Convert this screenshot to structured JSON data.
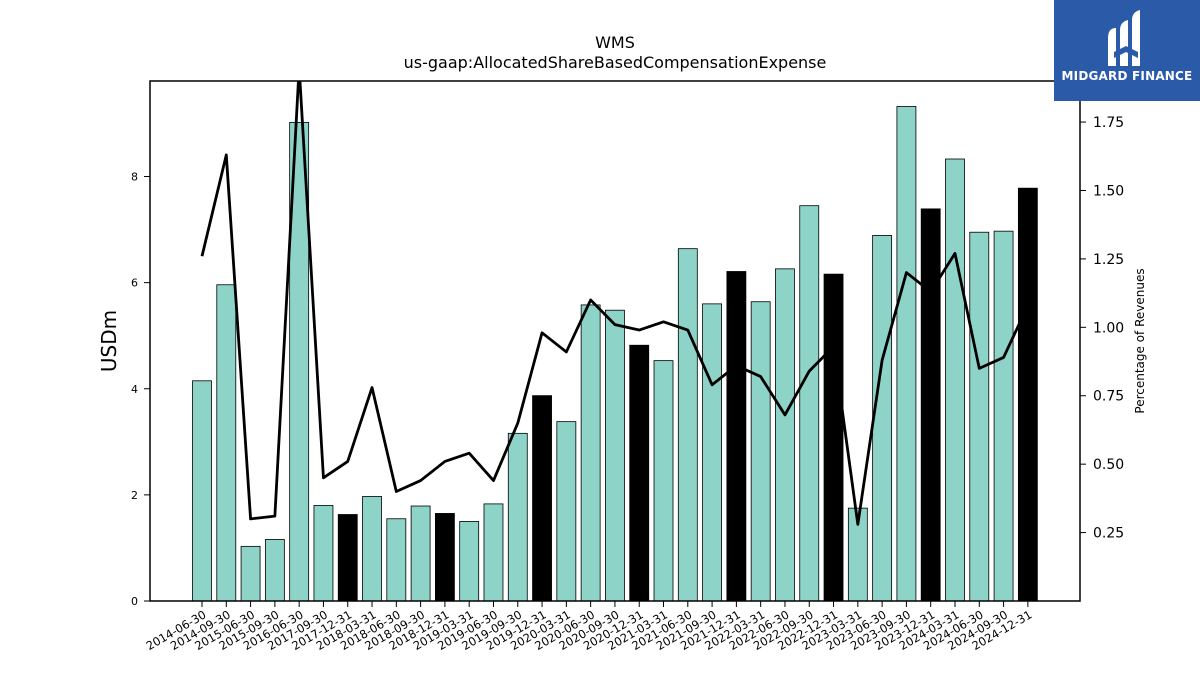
{
  "chart_data": {
    "type": "bar",
    "title": "WMS",
    "subtitle": "us-gaap:AllocatedShareBasedCompensationExpense",
    "ylabel": "USDm",
    "y2label": "Percentage of Revenues",
    "ylim": [
      0,
      9.8
    ],
    "y2lim": [
      0,
      1.9
    ],
    "yticks": [
      "0",
      "2",
      "4",
      "6",
      "8"
    ],
    "y2ticks": [
      "0.25",
      "0.50",
      "0.75",
      "1.00",
      "1.25",
      "1.50",
      "1.75"
    ],
    "categories": [
      "2014-06-30",
      "2014-09-30",
      "2015-06-30",
      "2015-09-30",
      "2016-06-30",
      "2017-09-30",
      "2017-12-31",
      "2018-03-31",
      "2018-06-30",
      "2018-09-30",
      "2018-12-31",
      "2019-03-31",
      "2019-06-30",
      "2019-09-30",
      "2019-12-31",
      "2020-03-31",
      "2020-06-30",
      "2020-09-30",
      "2020-12-31",
      "2021-03-31",
      "2021-06-30",
      "2021-09-30",
      "2021-12-31",
      "2022-03-31",
      "2022-06-30",
      "2022-09-30",
      "2022-12-31",
      "2023-03-31",
      "2023-06-30",
      "2023-09-30",
      "2023-12-31",
      "2024-03-31",
      "2024-06-30",
      "2024-09-30",
      "2024-12-31"
    ],
    "series": [
      {
        "type": "bar",
        "values": [
          4.15,
          5.96,
          1.03,
          1.16,
          9.02,
          1.8,
          1.63,
          1.97,
          1.55,
          1.79,
          1.65,
          1.5,
          1.83,
          3.16,
          3.87,
          3.38,
          5.58,
          5.48,
          4.82,
          4.53,
          6.64,
          5.6,
          6.21,
          5.64,
          6.26,
          7.45,
          6.16,
          1.75,
          6.89,
          9.32,
          7.39,
          8.33,
          6.95,
          6.97,
          7.78
        ],
        "highlight": [
          false,
          false,
          false,
          false,
          false,
          false,
          true,
          false,
          false,
          false,
          true,
          false,
          false,
          false,
          true,
          false,
          false,
          false,
          true,
          false,
          false,
          false,
          true,
          false,
          false,
          false,
          true,
          false,
          false,
          false,
          true,
          false,
          false,
          false,
          true
        ],
        "color": "#8dd3c7",
        "highlight_color": "#000000"
      },
      {
        "type": "line",
        "axis": "right",
        "values": [
          1.26,
          1.63,
          0.3,
          0.31,
          1.95,
          0.45,
          0.51,
          0.78,
          0.4,
          0.44,
          0.51,
          0.54,
          0.44,
          0.65,
          0.98,
          0.91,
          1.1,
          1.01,
          0.99,
          1.02,
          0.99,
          0.79,
          0.86,
          0.82,
          0.68,
          0.84,
          0.93,
          0.28,
          0.88,
          1.2,
          1.13,
          1.27,
          0.85,
          0.89,
          1.08
        ],
        "color": "#000000"
      }
    ]
  },
  "logo": {
    "text": "MIDGARD FINANCE",
    "background": "#2a5aa8"
  }
}
